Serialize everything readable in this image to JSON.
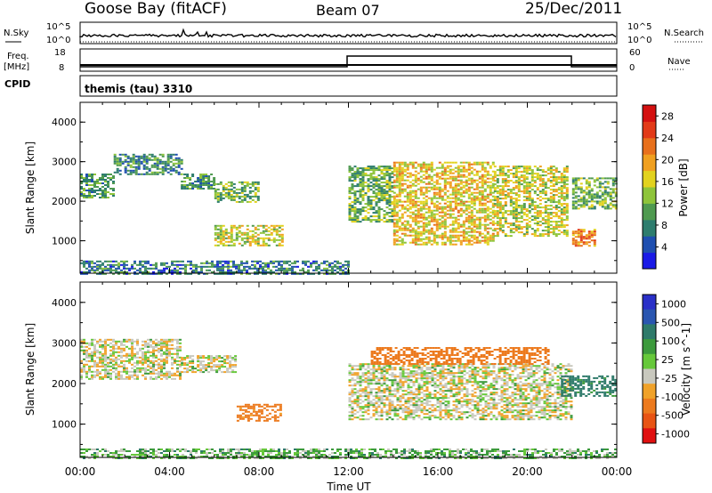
{
  "header": {
    "station": "Goose Bay (fitACF)",
    "beam": "Beam 07",
    "date": "25/Dec/2011"
  },
  "noise_panel": {
    "left_label": "N.Sky",
    "left_tick_top": "10^5",
    "left_tick_bottom": "10^0",
    "right_tick_top": "10^5",
    "right_tick_bottom": "10^0",
    "right_label": "N.Search"
  },
  "freq_panel": {
    "left_label_line1": "Freq.",
    "left_label_line2": "[MHz]",
    "left_tick_top": "18",
    "left_tick_bottom": "8",
    "right_tick_top": "60",
    "right_tick_bottom": "0",
    "right_label": "Nave"
  },
  "cpid_panel": {
    "left_label": "CPID",
    "program": "themis (tau) 3310"
  },
  "colors": {
    "power_scale": [
      "#1a1ae6",
      "#1f4fb0",
      "#2e7d6e",
      "#4f9a50",
      "#8ec43a",
      "#e2d21e",
      "#f0a020",
      "#e8701c",
      "#e23a18",
      "#d41010"
    ],
    "velocity_scale": [
      "#2a30c8",
      "#2a56b0",
      "#2e7a6a",
      "#3c9a3c",
      "#66c83a",
      "#c8c8be",
      "#f0a22a",
      "#ec7a1e",
      "#e85414",
      "#e01010"
    ]
  },
  "chart_data": [
    {
      "type": "heatmap",
      "title": "",
      "ylabel": "Slant Range [km]",
      "xlabel": "",
      "ylim": [
        180,
        4500
      ],
      "xlim_hours": [
        0,
        24
      ],
      "y_ticks": [
        "1000",
        "2000",
        "3000",
        "4000"
      ],
      "colorbar_label": "Power [dB]",
      "colorbar_ticks": [
        "4",
        "8",
        "12",
        "16",
        "20",
        "24",
        "28"
      ],
      "colorbar_range": [
        0,
        30
      ],
      "echo_regions": [
        {
          "t0": 0.0,
          "t1": 1.5,
          "r0": 2100,
          "r1": 2700,
          "level": 8
        },
        {
          "t0": 1.5,
          "t1": 4.5,
          "r0": 2700,
          "r1": 3200,
          "level": 7
        },
        {
          "t0": 4.5,
          "t1": 6.0,
          "r0": 2300,
          "r1": 2700,
          "level": 8
        },
        {
          "t0": 6.0,
          "t1": 8.0,
          "r0": 2000,
          "r1": 2500,
          "level": 10
        },
        {
          "t0": 6.0,
          "t1": 9.0,
          "r0": 900,
          "r1": 1400,
          "level": 14
        },
        {
          "t0": 12.0,
          "t1": 14.0,
          "r0": 1500,
          "r1": 2900,
          "level": 10
        },
        {
          "t0": 14.0,
          "t1": 18.5,
          "r0": 900,
          "r1": 3000,
          "level": 16
        },
        {
          "t0": 18.5,
          "t1": 21.8,
          "r0": 1100,
          "r1": 2900,
          "level": 14
        },
        {
          "t0": 22.0,
          "t1": 23.0,
          "r0": 850,
          "r1": 1300,
          "level": 20
        },
        {
          "t0": 22.0,
          "t1": 24.0,
          "r0": 1800,
          "r1": 2600,
          "level": 10
        },
        {
          "t0": 0.0,
          "t1": 12.0,
          "r0": 180,
          "r1": 500,
          "level": 6
        }
      ]
    },
    {
      "type": "heatmap",
      "title": "",
      "ylabel": "Slant Range [km]",
      "xlabel": "Time UT",
      "ylim": [
        180,
        4500
      ],
      "xlim_hours": [
        0,
        24
      ],
      "x_ticks": [
        "00:00",
        "04:00",
        "08:00",
        "12:00",
        "16:00",
        "20:00",
        "00:00"
      ],
      "y_ticks": [
        "1000",
        "2000",
        "3000",
        "4000"
      ],
      "colorbar_label": "Velocity [m s^-1]",
      "colorbar_ticks": [
        "1000",
        "500",
        "100",
        "25",
        "-25",
        "-100",
        "-500",
        "-1000"
      ],
      "echo_regions": [
        {
          "t0": 0.0,
          "t1": 4.5,
          "r0": 2100,
          "r1": 3100,
          "value": 0
        },
        {
          "t0": 4.5,
          "t1": 7.0,
          "r0": 2300,
          "r1": 2700,
          "value": 0
        },
        {
          "t0": 7.0,
          "t1": 9.0,
          "r0": 1100,
          "r1": 1500,
          "value": -150
        },
        {
          "t0": 12.0,
          "t1": 22.0,
          "r0": 1100,
          "r1": 2500,
          "value": 0
        },
        {
          "t0": 13.0,
          "t1": 21.0,
          "r0": 2500,
          "r1": 2900,
          "value": -200
        },
        {
          "t0": 21.5,
          "t1": 24.0,
          "r0": 1700,
          "r1": 2200,
          "value": 150
        },
        {
          "t0": 0.0,
          "t1": 24.0,
          "r0": 180,
          "r1": 400,
          "value": 50
        }
      ]
    }
  ]
}
